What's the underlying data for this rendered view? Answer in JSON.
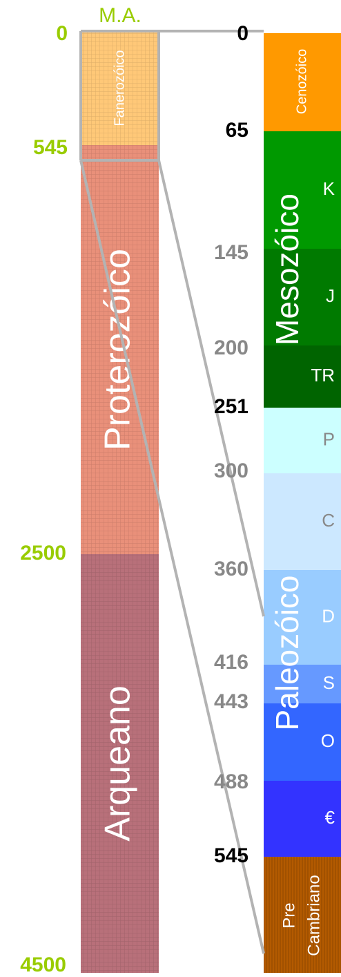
{
  "unit_label": "M.A.",
  "eon_ticks": [
    "0",
    "545",
    "2500",
    "4500"
  ],
  "eons": [
    {
      "label": "Fanerozóico",
      "color": "#ffc878"
    },
    {
      "label": "Proterozóico",
      "color": "#e9907a"
    },
    {
      "label": "Arqueano",
      "color": "#b8707a"
    }
  ],
  "period_ticks": [
    {
      "label": "0",
      "color": "#000000"
    },
    {
      "label": "65",
      "color": "#000000"
    },
    {
      "label": "145",
      "color": "#888888"
    },
    {
      "label": "200",
      "color": "#888888"
    },
    {
      "label": "251",
      "color": "#000000"
    },
    {
      "label": "300",
      "color": "#888888"
    },
    {
      "label": "360",
      "color": "#888888"
    },
    {
      "label": "416",
      "color": "#888888"
    },
    {
      "label": "443",
      "color": "#888888"
    },
    {
      "label": "488",
      "color": "#888888"
    },
    {
      "label": "545",
      "color": "#000000"
    }
  ],
  "eras": [
    "Cenozóico",
    "Mesozóico",
    "Paleozóico"
  ],
  "periods": [
    {
      "label": "K",
      "color": "#009900"
    },
    {
      "label": "J",
      "color": "#007a00"
    },
    {
      "label": "TR",
      "color": "#006400"
    },
    {
      "label": "P",
      "color": "#ccffff"
    },
    {
      "label": "C",
      "color": "#cce8ff"
    },
    {
      "label": "D",
      "color": "#99ccff"
    },
    {
      "label": "S",
      "color": "#6699ff"
    },
    {
      "label": "O",
      "color": "#3366ff"
    },
    {
      "label": "€",
      "color": "#3333ff"
    }
  ],
  "precambrian": [
    "Pre",
    "Cambriano"
  ]
}
